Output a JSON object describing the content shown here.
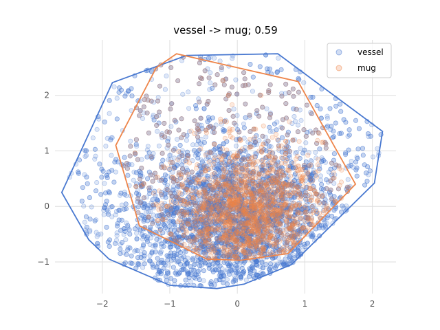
{
  "chart_data": {
    "type": "scatter",
    "title": "vessel -> mug; 0.59",
    "xlabel": "",
    "ylabel": "",
    "xlim": [
      -2.7,
      2.35
    ],
    "ylim": [
      -1.57,
      3.0
    ],
    "xticks": [
      -2,
      -1,
      0,
      1,
      2
    ],
    "yticks": [
      -1,
      0,
      1,
      2
    ],
    "xtick_labels": [
      "−2",
      "−1",
      "0",
      "1",
      "2"
    ],
    "ytick_labels": [
      "−1",
      "0",
      "1",
      "2"
    ],
    "grid": true,
    "legend_position": "top-right",
    "series": [
      {
        "name": "vessel",
        "color": "#4878d0",
        "point_count": 5000,
        "center": [
          -0.05,
          -0.25
        ],
        "hull": [
          [
            -2.6,
            0.25
          ],
          [
            -1.85,
            2.23
          ],
          [
            -0.75,
            2.72
          ],
          [
            0.6,
            2.75
          ],
          [
            2.15,
            1.35
          ],
          [
            2.03,
            0.42
          ],
          [
            0.8,
            -1.05
          ],
          [
            0.1,
            -1.4
          ],
          [
            -0.3,
            -1.48
          ],
          [
            -1.0,
            -1.42
          ],
          [
            -1.9,
            -0.95
          ],
          [
            -2.2,
            -0.6
          ]
        ]
      },
      {
        "name": "mug",
        "color": "#ee854a",
        "point_count": 1800,
        "center": [
          0.15,
          -0.15
        ],
        "hull": [
          [
            -1.8,
            1.1
          ],
          [
            -1.2,
            2.5
          ],
          [
            -0.9,
            2.75
          ],
          [
            0.9,
            2.25
          ],
          [
            1.75,
            0.4
          ],
          [
            0.75,
            -0.85
          ],
          [
            0.05,
            -0.97
          ],
          [
            -0.45,
            -0.95
          ],
          [
            -1.45,
            -0.35
          ]
        ]
      }
    ]
  }
}
